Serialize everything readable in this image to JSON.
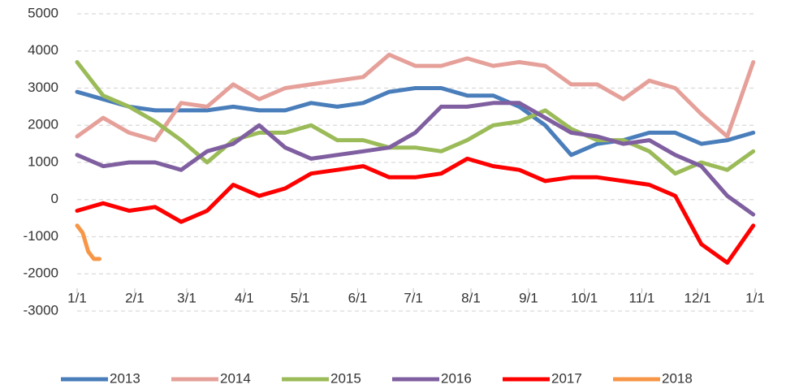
{
  "chart_data": {
    "type": "line",
    "xlim": [
      0,
      365
    ],
    "xticks": [
      {
        "value": 0,
        "label": "1/1"
      },
      {
        "value": 31,
        "label": "2/1"
      },
      {
        "value": 59,
        "label": "3/1"
      },
      {
        "value": 90,
        "label": "4/1"
      },
      {
        "value": 120,
        "label": "5/1"
      },
      {
        "value": 151,
        "label": "6/1"
      },
      {
        "value": 181,
        "label": "7/1"
      },
      {
        "value": 212,
        "label": "8/1"
      },
      {
        "value": 243,
        "label": "9/1"
      },
      {
        "value": 273,
        "label": "10/1"
      },
      {
        "value": 304,
        "label": "11/1"
      },
      {
        "value": 334,
        "label": "12/1"
      },
      {
        "value": 365,
        "label": "1/1"
      }
    ],
    "ylim": [
      -3000,
      5000
    ],
    "yticks": [
      -3000,
      -2000,
      -1000,
      0,
      1000,
      2000,
      3000,
      4000,
      5000
    ],
    "grid": true,
    "series": [
      {
        "name": "2013",
        "color": "#4a7ebb",
        "x": [
          0,
          14,
          28,
          42,
          56,
          70,
          84,
          98,
          112,
          126,
          140,
          154,
          168,
          182,
          196,
          210,
          224,
          238,
          252,
          266,
          280,
          294,
          308,
          322,
          336,
          350,
          364
        ],
        "values": [
          2900,
          2700,
          2500,
          2400,
          2400,
          2400,
          2500,
          2400,
          2400,
          2600,
          2500,
          2600,
          2900,
          3000,
          3000,
          2800,
          2800,
          2500,
          2000,
          1200,
          1500,
          1600,
          1800,
          1800,
          1500,
          1600,
          1800
        ]
      },
      {
        "name": "2014",
        "color": "#e6a09a",
        "x": [
          0,
          14,
          28,
          42,
          56,
          70,
          84,
          98,
          112,
          126,
          140,
          154,
          168,
          182,
          196,
          210,
          224,
          238,
          252,
          266,
          280,
          294,
          308,
          322,
          336,
          350,
          364
        ],
        "values": [
          1700,
          2200,
          1800,
          1600,
          2600,
          2500,
          3100,
          2700,
          3000,
          3100,
          3200,
          3300,
          3900,
          3600,
          3600,
          3800,
          3600,
          3700,
          3600,
          3100,
          3100,
          2700,
          3200,
          3000,
          2300,
          1700,
          3700
        ]
      },
      {
        "name": "2015",
        "color": "#9bbb59",
        "x": [
          0,
          14,
          28,
          42,
          56,
          70,
          84,
          98,
          112,
          126,
          140,
          154,
          168,
          182,
          196,
          210,
          224,
          238,
          252,
          266,
          280,
          294,
          308,
          322,
          336,
          350,
          364
        ],
        "values": [
          3700,
          2800,
          2500,
          2100,
          1600,
          1000,
          1600,
          1800,
          1800,
          2000,
          1600,
          1600,
          1400,
          1400,
          1300,
          1600,
          2000,
          2100,
          2400,
          1900,
          1600,
          1600,
          1300,
          700,
          1000,
          800,
          1300
        ]
      },
      {
        "name": "2016",
        "color": "#7f5fa0",
        "x": [
          0,
          14,
          28,
          42,
          56,
          70,
          84,
          98,
          112,
          126,
          140,
          154,
          168,
          182,
          196,
          210,
          224,
          238,
          252,
          266,
          280,
          294,
          308,
          322,
          336,
          350,
          364
        ],
        "values": [
          1200,
          900,
          1000,
          1000,
          800,
          1300,
          1500,
          2000,
          1400,
          1100,
          1200,
          1300,
          1400,
          1800,
          2500,
          2500,
          2600,
          2600,
          2200,
          1800,
          1700,
          1500,
          1600,
          1200,
          900,
          100,
          -400
        ]
      },
      {
        "name": "2017",
        "color": "#ff0000",
        "x": [
          0,
          14,
          28,
          42,
          56,
          70,
          84,
          98,
          112,
          126,
          140,
          154,
          168,
          182,
          196,
          210,
          224,
          238,
          252,
          266,
          280,
          294,
          308,
          322,
          336,
          350,
          364
        ],
        "values": [
          -300,
          -100,
          -300,
          -200,
          -600,
          -300,
          400,
          100,
          300,
          700,
          800,
          900,
          600,
          600,
          700,
          1100,
          900,
          800,
          500,
          600,
          600,
          500,
          400,
          100,
          -1200,
          -1700,
          -700
        ]
      },
      {
        "name": "2018",
        "color": "#f79646",
        "x": [
          0,
          3,
          6,
          9,
          12
        ],
        "values": [
          -700,
          -900,
          -1400,
          -1600,
          -1600
        ]
      }
    ]
  }
}
